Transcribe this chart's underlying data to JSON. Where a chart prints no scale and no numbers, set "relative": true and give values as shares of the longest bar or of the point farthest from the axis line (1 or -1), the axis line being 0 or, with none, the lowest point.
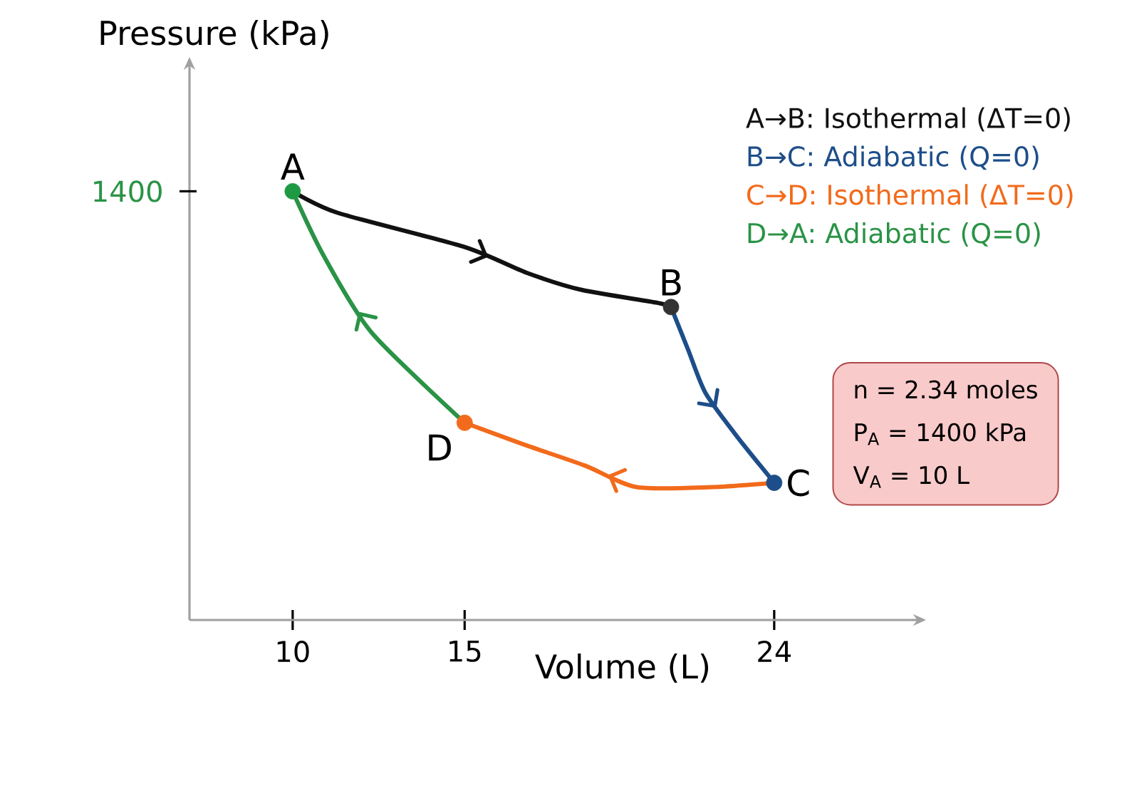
{
  "chart_data": {
    "type": "line",
    "relative": true,
    "xlabel": "Volume (L)",
    "ylabel": "Pressure (kPa)",
    "xlim": [
      7,
      28
    ],
    "xticks": [
      10,
      15,
      24
    ],
    "legend": "top right",
    "series": [
      {
        "name": "A→B: Isothermal (ΔT=0)",
        "color": "#111111",
        "x": [
          10,
          11.3,
          15,
          16.8,
          18.4,
          20.6,
          21
        ],
        "values": [
          1,
          0.95,
          0.87,
          0.81,
          0.77,
          0.74,
          0.73
        ]
      },
      {
        "name": "B→C: Adiabatic (Q=0)",
        "color": "#1d4e89",
        "x": [
          21,
          21.5,
          22,
          22.9,
          23.8,
          24
        ],
        "values": [
          0.73,
          0.63,
          0.53,
          0.43,
          0.34,
          0.32
        ]
      },
      {
        "name": "C→D: Isothermal (ΔT=0)",
        "color": "#f26a1b",
        "x": [
          24,
          22.2,
          20,
          18.5,
          16.7,
          15
        ],
        "values": [
          0.32,
          0.31,
          0.31,
          0.36,
          0.41,
          0.46
        ]
      },
      {
        "name": "D→A: Adiabatic (Q=0)",
        "color": "#2a9346",
        "x": [
          15,
          12.3,
          10.9,
          10
        ],
        "values": [
          0.46,
          0.67,
          0.85,
          1
        ]
      },
      {
        "type": "scatter",
        "marker": "circle",
        "x": [
          10,
          21,
          24,
          15
        ],
        "values": [
          1,
          0.73,
          0.32,
          0.46
        ],
        "colors": [
          "#1e9a44",
          "#333333",
          "#1d4e89",
          "#f26a1b"
        ]
      }
    ],
    "annotations": [
      "1400",
      "n = 2.34 moles",
      "P$_{A}$ = 1400 kPa",
      "V$_{A}$ = 10 L",
      {
        "text": "A",
        "x": 10,
        "y": 1
      },
      {
        "text": "B",
        "x": 21,
        "y": 0.73
      },
      {
        "text": "C",
        "x": 24,
        "y": 0.32
      },
      {
        "text": "D",
        "x": 15,
        "y": 0.46
      }
    ]
  }
}
